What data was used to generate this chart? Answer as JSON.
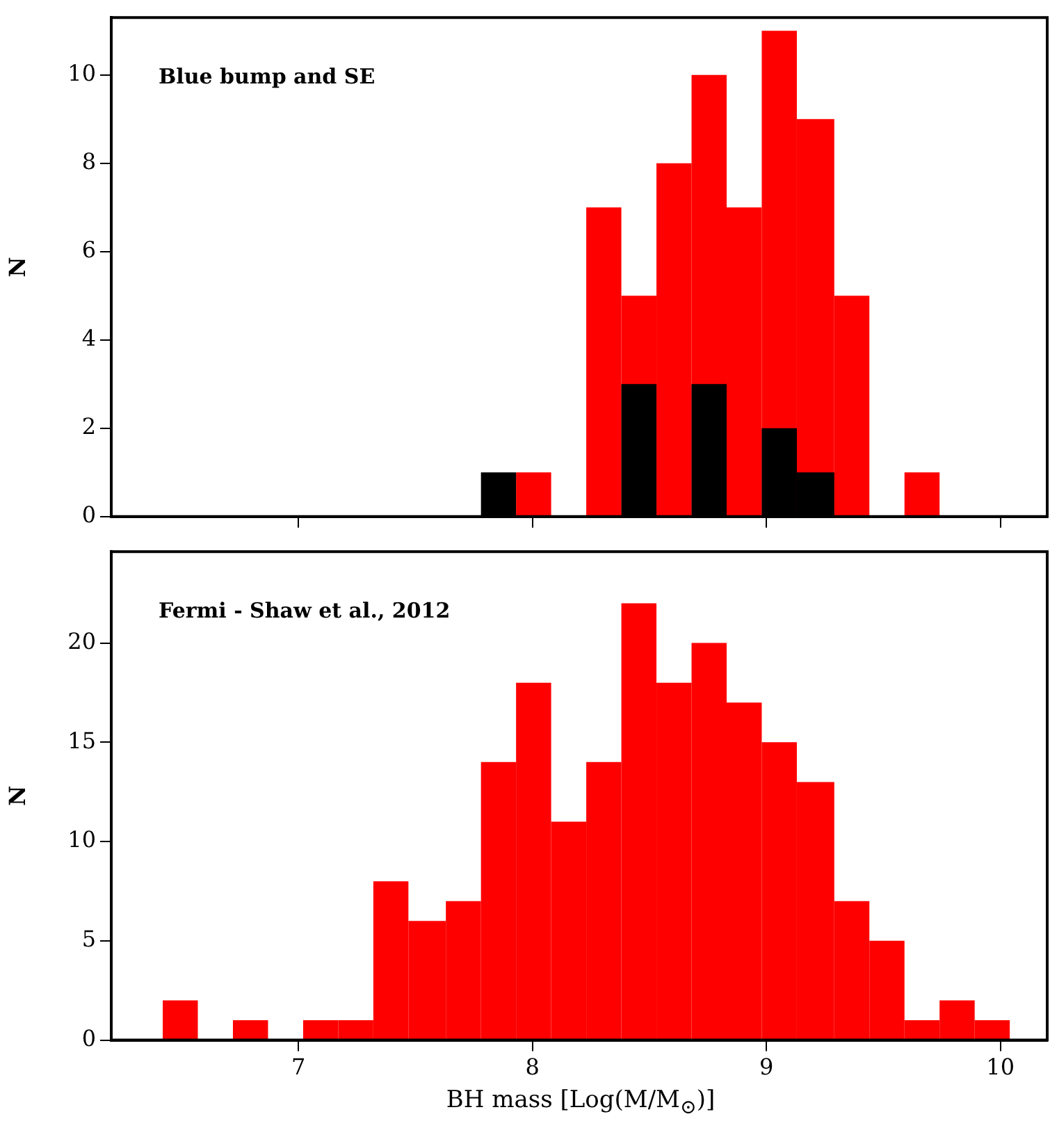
{
  "chart_data": [
    {
      "type": "histogram",
      "ylabel": "N",
      "annotations": [
        "Blue bump and SE"
      ],
      "bins": [
        7.78,
        7.93,
        8.08,
        8.23,
        8.38,
        8.53,
        8.68,
        8.83,
        8.98,
        9.13,
        9.29,
        9.44,
        9.59,
        9.74
      ],
      "series": [
        {
          "color": "#ff0000",
          "values": [
            null,
            1,
            0,
            7,
            5,
            8,
            10,
            7,
            11,
            9,
            5,
            0,
            1
          ]
        },
        {
          "color": "#000000",
          "values": [
            1,
            0,
            0,
            0,
            3,
            0,
            3,
            0,
            2,
            1,
            0,
            0,
            0
          ]
        }
      ],
      "xlim": [
        6.2,
        10.2
      ],
      "xticks": [
        7,
        8,
        9,
        10
      ],
      "ylim": [
        0,
        11.3
      ],
      "yticks": [
        0,
        2,
        4,
        6,
        8,
        10
      ],
      "tick_labels": "y",
      "grid": false,
      "legend": false
    },
    {
      "type": "histogram",
      "xlabel": "BH mass [Log(M/M$_{⊙}$)]",
      "ylabel": "N",
      "annotations": [
        "Fermi - Shaw et al., 2012"
      ],
      "bins": [
        6.42,
        6.57,
        6.72,
        6.87,
        7.02,
        7.17,
        7.32,
        7.47,
        7.63,
        7.78,
        7.93,
        8.08,
        8.23,
        8.38,
        8.53,
        8.68,
        8.83,
        8.98,
        9.13,
        9.29,
        9.44,
        9.59,
        9.74,
        9.89,
        10.04
      ],
      "series": [
        {
          "color": "#ff0000",
          "values": [
            2,
            0,
            1,
            0,
            1,
            1,
            8,
            6,
            7,
            14,
            18,
            11,
            14,
            22,
            18,
            20,
            17,
            15,
            13,
            7,
            5,
            1,
            2,
            1
          ]
        }
      ],
      "xlim": [
        6.2,
        10.2
      ],
      "xticks": [
        7,
        8,
        9,
        10
      ],
      "ylim": [
        0,
        24.6
      ],
      "yticks": [
        0,
        5,
        10,
        15,
        20
      ],
      "grid": false,
      "legend": false
    }
  ]
}
